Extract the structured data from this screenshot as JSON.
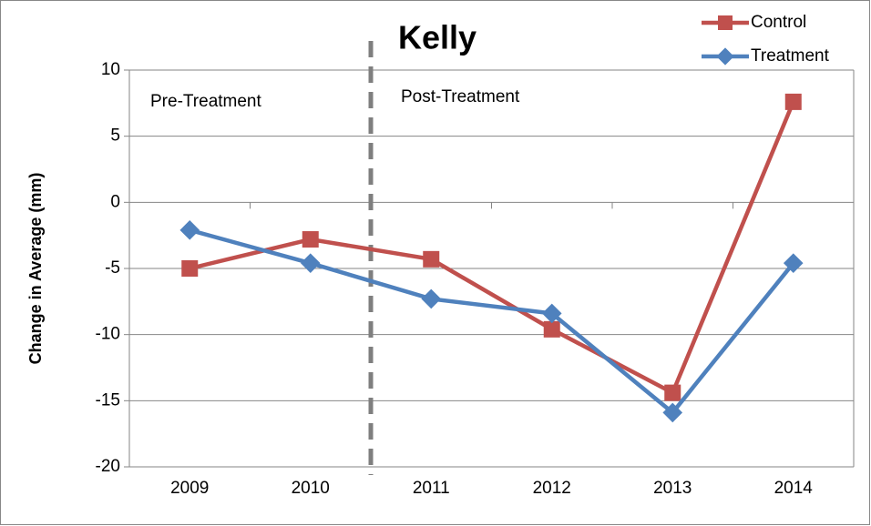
{
  "chart_data": {
    "type": "line",
    "title": "Kelly",
    "ylabel": "Change in Average (mm)",
    "categories": [
      "2009",
      "2010",
      "2011",
      "2012",
      "2013",
      "2014"
    ],
    "series": [
      {
        "name": "Control",
        "color": "#c0504d",
        "marker": "square",
        "values": [
          -5.0,
          -2.8,
          -4.3,
          -9.6,
          -14.4,
          7.6
        ]
      },
      {
        "name": "Treatment",
        "color": "#4f81bd",
        "marker": "diamond",
        "values": [
          -2.1,
          -4.6,
          -7.3,
          -8.4,
          -15.9,
          -4.6
        ]
      }
    ],
    "annotations": [
      "Pre-Treatment",
      "Post-Treatment"
    ],
    "ylim": [
      -20,
      10
    ],
    "yticks": [
      -20,
      -15,
      -10,
      -5,
      0,
      5,
      10
    ],
    "grid": true,
    "legend": "top-right"
  }
}
